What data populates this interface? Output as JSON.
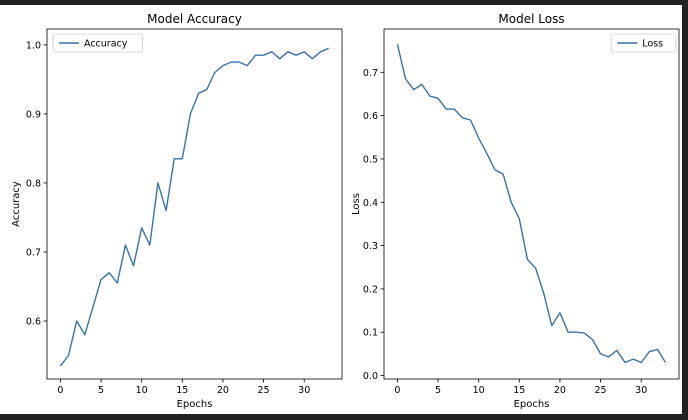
{
  "colors": {
    "background": "#222222",
    "figure": "#ffffff",
    "line": "#3a72a8"
  },
  "chart_data": [
    {
      "type": "line",
      "title": "Model Accuracy",
      "xlabel": "Epochs",
      "ylabel": "Accuracy",
      "xlim": [
        -1.65,
        34.65
      ],
      "ylim": [
        0.516,
        1.023
      ],
      "x_ticks": [
        0,
        5,
        10,
        15,
        20,
        25,
        30
      ],
      "y_ticks": [
        0.6,
        0.7,
        0.8,
        0.9,
        1.0
      ],
      "y_tick_labels": [
        "0.6",
        "0.7",
        "0.8",
        "0.9",
        "1.0"
      ],
      "legend": "top-left",
      "grid": false,
      "series": [
        {
          "name": "Accuracy",
          "x": [
            0,
            1,
            2,
            3,
            4,
            5,
            6,
            7,
            8,
            9,
            10,
            11,
            12,
            13,
            14,
            15,
            16,
            17,
            18,
            19,
            20,
            21,
            22,
            23,
            24,
            25,
            26,
            27,
            28,
            29,
            30,
            31,
            32,
            33
          ],
          "values": [
            0.535,
            0.55,
            0.6,
            0.58,
            0.62,
            0.66,
            0.67,
            0.655,
            0.71,
            0.68,
            0.735,
            0.71,
            0.8,
            0.76,
            0.835,
            0.835,
            0.9,
            0.93,
            0.935,
            0.96,
            0.97,
            0.975,
            0.975,
            0.97,
            0.985,
            0.985,
            0.99,
            0.98,
            0.99,
            0.985,
            0.99,
            0.98,
            0.99,
            0.995
          ]
        }
      ]
    },
    {
      "type": "line",
      "title": "Model Loss",
      "xlabel": "Epochs",
      "ylabel": "Loss",
      "xlim": [
        -1.65,
        34.65
      ],
      "ylim": [
        -0.008,
        0.8
      ],
      "x_ticks": [
        0,
        5,
        10,
        15,
        20,
        25,
        30
      ],
      "y_ticks": [
        0.0,
        0.1,
        0.2,
        0.3,
        0.4,
        0.5,
        0.6,
        0.7
      ],
      "y_tick_labels": [
        "0.0",
        "0.1",
        "0.2",
        "0.3",
        "0.4",
        "0.5",
        "0.6",
        "0.7"
      ],
      "legend": "top-right",
      "grid": false,
      "series": [
        {
          "name": "Loss",
          "x": [
            0,
            1,
            2,
            3,
            4,
            5,
            6,
            7,
            8,
            9,
            10,
            11,
            12,
            13,
            14,
            15,
            16,
            17,
            18,
            19,
            20,
            21,
            22,
            23,
            24,
            25,
            26,
            27,
            28,
            29,
            30,
            31,
            32,
            33
          ],
          "values": [
            0.765,
            0.685,
            0.66,
            0.672,
            0.645,
            0.64,
            0.615,
            0.615,
            0.595,
            0.59,
            0.548,
            0.513,
            0.475,
            0.465,
            0.4,
            0.362,
            0.268,
            0.248,
            0.19,
            0.115,
            0.145,
            0.1,
            0.1,
            0.098,
            0.083,
            0.05,
            0.043,
            0.058,
            0.03,
            0.038,
            0.03,
            0.055,
            0.06,
            0.03
          ]
        }
      ]
    }
  ]
}
